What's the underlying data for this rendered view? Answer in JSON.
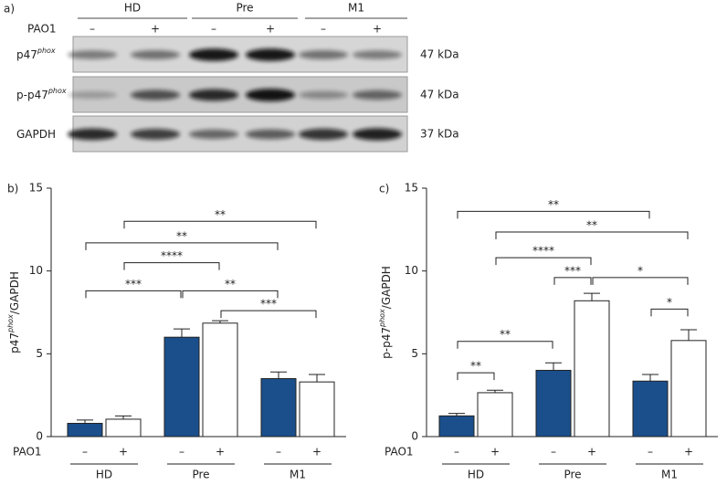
{
  "blot": {
    "panel_label": "a)",
    "groups": [
      "HD",
      "Pre",
      "M1"
    ],
    "treatment_label": "PAO1",
    "treatments": [
      "–",
      "+"
    ],
    "rows": [
      {
        "label": "p47",
        "label_sup": "phox",
        "size": "47 kDa"
      },
      {
        "label": "p-p47",
        "label_sup": "phox",
        "size": "47 kDa"
      },
      {
        "label": "GAPDH",
        "size": "37 kDa"
      }
    ]
  },
  "chart_data": [
    {
      "type": "bar",
      "panel_label": "b)",
      "y_label": "p47",
      "y_label_sup": "phox",
      "y_label_suffix": "/GAPDH",
      "x_label": "PAO1",
      "categories": [
        "HD",
        "Pre",
        "M1"
      ],
      "series": [
        {
          "name": "–",
          "color": "#1a4f8b",
          "values": [
            0.8,
            6.0,
            3.5
          ],
          "errors": [
            0.2,
            0.5,
            0.4
          ]
        },
        {
          "name": "+",
          "color": "#ffffff",
          "values": [
            1.05,
            6.85,
            3.3
          ],
          "errors": [
            0.2,
            0.15,
            0.45
          ]
        }
      ],
      "ylim": [
        0,
        15
      ],
      "yticks": [
        0,
        5,
        10,
        15
      ],
      "annotations": [
        {
          "from": 1,
          "to": 5,
          "label": "**",
          "y": 13
        },
        {
          "from": 0,
          "to": 4,
          "label": "**",
          "y": 11.7
        },
        {
          "from": 1,
          "to": 3,
          "label": "****",
          "y": 10.5
        },
        {
          "from": 0,
          "to": 2,
          "label": "***",
          "y": 8.8
        },
        {
          "from": 2,
          "to": 4,
          "label": "**",
          "y": 8.8
        },
        {
          "from": 3,
          "to": 5,
          "label": "***",
          "y": 7.6
        }
      ]
    },
    {
      "type": "bar",
      "panel_label": "c)",
      "y_label": "p-p47",
      "y_label_sup": "phox",
      "y_label_suffix": "/GAPDH",
      "x_label": "PAO1",
      "categories": [
        "HD",
        "Pre",
        "M1"
      ],
      "series": [
        {
          "name": "–",
          "color": "#1a4f8b",
          "values": [
            1.25,
            4.0,
            3.35
          ],
          "errors": [
            0.15,
            0.45,
            0.4
          ]
        },
        {
          "name": "+",
          "color": "#ffffff",
          "values": [
            2.65,
            8.2,
            5.8
          ],
          "errors": [
            0.15,
            0.45,
            0.65
          ]
        }
      ],
      "ylim": [
        0,
        15
      ],
      "yticks": [
        0,
        5,
        10,
        15
      ],
      "annotations": [
        {
          "from": 0,
          "to": 4,
          "label": "**",
          "y": 13.6
        },
        {
          "from": 1,
          "to": 5,
          "label": "**",
          "y": 12.35
        },
        {
          "from": 1,
          "to": 3,
          "label": "****",
          "y": 10.8
        },
        {
          "from": 2,
          "to": 3,
          "label": "***",
          "y": 9.6
        },
        {
          "from": 3,
          "to": 5,
          "label": "*",
          "y": 9.6
        },
        {
          "from": 4,
          "to": 5,
          "label": "*",
          "y": 7.7
        },
        {
          "from": 0,
          "to": 2,
          "label": "**",
          "y": 5.75
        },
        {
          "from": 0,
          "to": 1,
          "label": "**",
          "y": 3.85
        }
      ]
    }
  ]
}
